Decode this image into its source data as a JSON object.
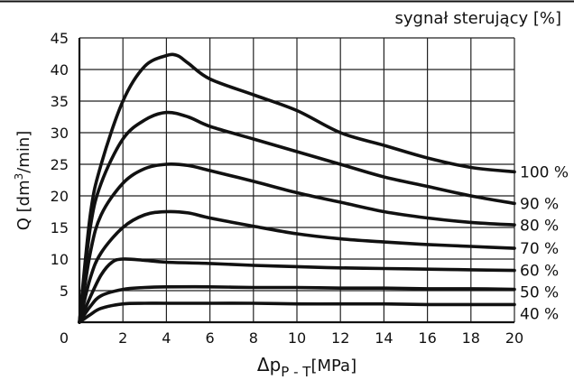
{
  "chart_data": {
    "type": "line",
    "title": "sygnał sterujący [%]",
    "xlabel": {
      "main": "Δp",
      "sub": "P - T",
      "unit": "[MPa]"
    },
    "ylabel": {
      "pre": "Q [dm",
      "sup": "3",
      "post": "/min]"
    },
    "xlim": [
      0,
      20
    ],
    "ylim": [
      0,
      45
    ],
    "x_ticks": [
      0,
      2,
      4,
      6,
      8,
      10,
      12,
      14,
      16,
      18,
      20
    ],
    "y_ticks": [
      0,
      5,
      10,
      15,
      20,
      25,
      30,
      35,
      40,
      45
    ],
    "grid": true,
    "series": [
      {
        "name": "100 %",
        "points": [
          [
            0,
            0
          ],
          [
            0.5,
            17
          ],
          [
            1,
            25
          ],
          [
            2,
            35
          ],
          [
            3,
            40.5
          ],
          [
            4,
            42.2
          ],
          [
            4.5,
            42.2
          ],
          [
            5,
            41
          ],
          [
            6,
            38.5
          ],
          [
            8,
            36
          ],
          [
            10,
            33.5
          ],
          [
            12,
            30
          ],
          [
            14,
            28
          ],
          [
            16,
            26
          ],
          [
            18,
            24.5
          ],
          [
            20,
            23.8
          ]
        ]
      },
      {
        "name": "90 %",
        "points": [
          [
            0,
            0
          ],
          [
            0.5,
            15
          ],
          [
            1,
            22
          ],
          [
            2,
            29
          ],
          [
            3,
            32
          ],
          [
            4,
            33.2
          ],
          [
            5,
            32.5
          ],
          [
            6,
            31
          ],
          [
            8,
            29
          ],
          [
            10,
            27
          ],
          [
            12,
            25
          ],
          [
            14,
            23
          ],
          [
            16,
            21.5
          ],
          [
            18,
            20
          ],
          [
            20,
            18.8
          ]
        ]
      },
      {
        "name": "80 %",
        "points": [
          [
            0,
            0
          ],
          [
            0.5,
            11
          ],
          [
            1,
            17
          ],
          [
            2,
            22
          ],
          [
            3,
            24.3
          ],
          [
            4,
            25
          ],
          [
            5,
            24.8
          ],
          [
            6,
            24
          ],
          [
            8,
            22.3
          ],
          [
            10,
            20.5
          ],
          [
            12,
            19
          ],
          [
            14,
            17.5
          ],
          [
            16,
            16.5
          ],
          [
            18,
            15.8
          ],
          [
            20,
            15.4
          ]
        ]
      },
      {
        "name": "70 %",
        "points": [
          [
            0,
            0
          ],
          [
            0.5,
            7
          ],
          [
            1,
            11
          ],
          [
            2,
            15
          ],
          [
            3,
            17
          ],
          [
            4,
            17.5
          ],
          [
            5,
            17.3
          ],
          [
            6,
            16.5
          ],
          [
            8,
            15.2
          ],
          [
            10,
            14
          ],
          [
            12,
            13.2
          ],
          [
            14,
            12.7
          ],
          [
            16,
            12.3
          ],
          [
            18,
            12
          ],
          [
            20,
            11.7
          ]
        ]
      },
      {
        "name": "60 %",
        "points": [
          [
            0,
            0
          ],
          [
            0.5,
            4
          ],
          [
            1,
            7.5
          ],
          [
            1.5,
            9.5
          ],
          [
            2,
            10
          ],
          [
            3,
            9.8
          ],
          [
            4,
            9.5
          ],
          [
            6,
            9.3
          ],
          [
            8,
            9
          ],
          [
            10,
            8.8
          ],
          [
            12,
            8.6
          ],
          [
            14,
            8.5
          ],
          [
            16,
            8.4
          ],
          [
            18,
            8.3
          ],
          [
            20,
            8.2
          ]
        ]
      },
      {
        "name": "50 %",
        "points": [
          [
            0,
            0
          ],
          [
            0.5,
            2.5
          ],
          [
            1,
            4.2
          ],
          [
            2,
            5.2
          ],
          [
            3,
            5.5
          ],
          [
            4,
            5.6
          ],
          [
            6,
            5.6
          ],
          [
            8,
            5.5
          ],
          [
            10,
            5.5
          ],
          [
            12,
            5.4
          ],
          [
            14,
            5.4
          ],
          [
            16,
            5.3
          ],
          [
            18,
            5.3
          ],
          [
            20,
            5.2
          ]
        ]
      },
      {
        "name": "40 %",
        "points": [
          [
            0,
            0
          ],
          [
            0.5,
            1.2
          ],
          [
            1,
            2.2
          ],
          [
            2,
            2.9
          ],
          [
            3,
            3
          ],
          [
            4,
            3
          ],
          [
            6,
            3
          ],
          [
            8,
            3
          ],
          [
            10,
            2.9
          ],
          [
            12,
            2.9
          ],
          [
            14,
            2.9
          ],
          [
            16,
            2.8
          ],
          [
            18,
            2.8
          ],
          [
            20,
            2.8
          ]
        ]
      }
    ]
  }
}
